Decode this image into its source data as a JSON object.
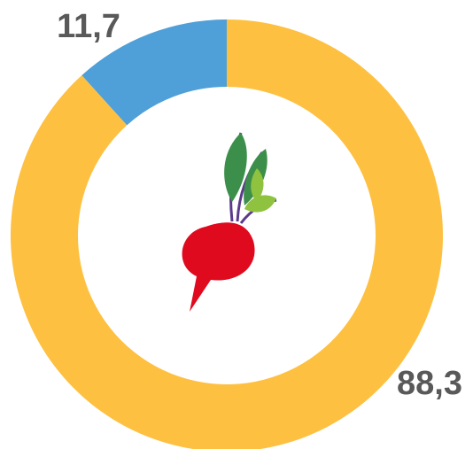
{
  "chart_data": {
    "type": "donut",
    "values": [
      88.3,
      11.7
    ],
    "value_labels": [
      "88,3",
      "11,7"
    ],
    "colors": [
      "#fec040",
      "#4f9fd8"
    ]
  }
}
